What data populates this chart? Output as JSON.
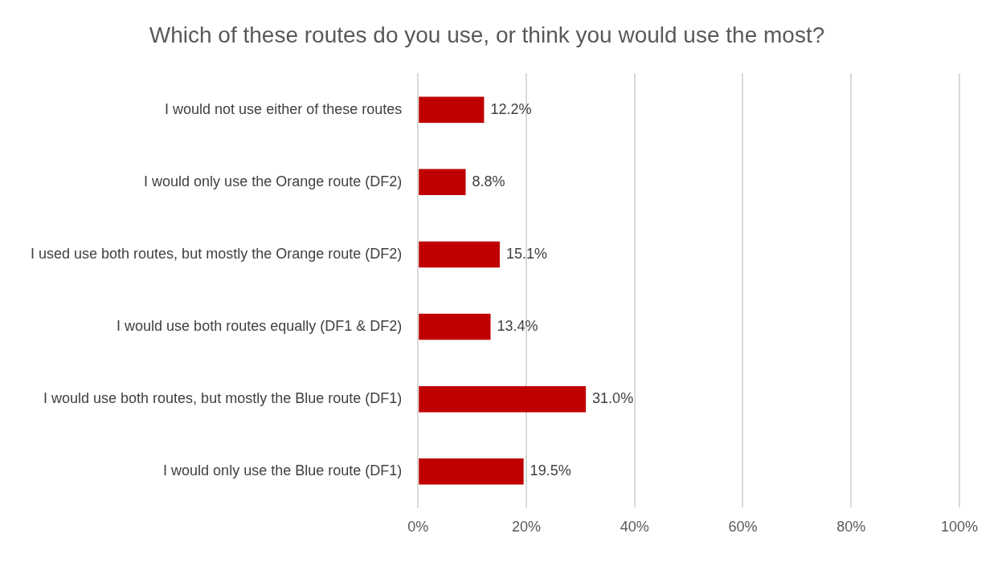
{
  "chart_data": {
    "type": "bar",
    "orientation": "horizontal",
    "title": "Which of these routes do you use, or think you would use the most?",
    "categories": [
      "I would not use either of these routes",
      "I would only use the Orange route (DF2)",
      "I used use both routes, but mostly the Orange route (DF2)",
      "I would use both routes equally (DF1 & DF2)",
      "I would use both routes, but mostly the Blue route (DF1)",
      "I would only use the Blue route (DF1)"
    ],
    "values": [
      12.2,
      8.8,
      15.1,
      13.4,
      31.0,
      19.5
    ],
    "value_labels": [
      "12.2%",
      "8.8%",
      "15.1%",
      "13.4%",
      "31.0%",
      "19.5%"
    ],
    "color": "#c00000",
    "xlim": [
      0,
      100
    ],
    "xticks": [
      {
        "value": 0,
        "label": "0%"
      },
      {
        "value": 20,
        "label": "20%"
      },
      {
        "value": 40,
        "label": "40%"
      },
      {
        "value": 60,
        "label": "60%"
      },
      {
        "value": 80,
        "label": "80%"
      },
      {
        "value": 100,
        "label": "100%"
      }
    ],
    "grid": "x",
    "legend": false
  }
}
